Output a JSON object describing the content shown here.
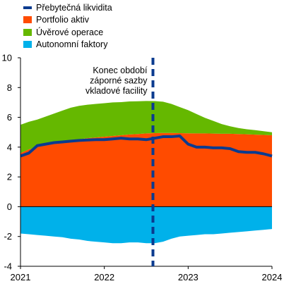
{
  "legend": {
    "items": [
      {
        "label": "Přebytečná likvidita",
        "color": "#0b3b8f",
        "kind": "line"
      },
      {
        "label": "Portfolio aktiv",
        "color": "#ff4b00",
        "kind": "box"
      },
      {
        "label": "Úvěrové  operace",
        "color": "#65b800",
        "kind": "box"
      },
      {
        "label": "Autonomní faktory",
        "color": "#00b1ea",
        "kind": "box"
      }
    ]
  },
  "annotation": {
    "lines": [
      "Konec období",
      "záporné sazby",
      "vkladové facility"
    ],
    "x": 2022.58
  },
  "chart_data": {
    "type": "area",
    "title": "",
    "xlabel": "",
    "ylabel": "",
    "xlim": [
      2021.0,
      2024.0
    ],
    "ylim": [
      -4,
      10
    ],
    "yticks": [
      -4,
      -2,
      0,
      2,
      4,
      6,
      8,
      10
    ],
    "xticks": [
      {
        "value": 2021,
        "label": "2021"
      },
      {
        "value": 2022,
        "label": "2022"
      },
      {
        "value": 2023,
        "label": "2023"
      },
      {
        "value": 2024,
        "label": "2024"
      }
    ],
    "x": [
      2021.0,
      2021.1,
      2021.2,
      2021.3,
      2021.4,
      2021.5,
      2021.6,
      2021.7,
      2021.8,
      2021.9,
      2022.0,
      2022.1,
      2022.2,
      2022.3,
      2022.4,
      2022.5,
      2022.6,
      2022.7,
      2022.8,
      2022.9,
      2023.0,
      2023.1,
      2023.2,
      2023.3,
      2023.4,
      2023.5,
      2023.6,
      2023.7,
      2023.8,
      2023.9,
      2024.0
    ],
    "series": [
      {
        "name": "Portfolio aktiv",
        "color": "#ff4b00",
        "kind": "area-positive",
        "values": [
          3.6,
          3.85,
          4.0,
          4.15,
          4.25,
          4.35,
          4.45,
          4.52,
          4.6,
          4.65,
          4.7,
          4.75,
          4.8,
          4.85,
          4.88,
          4.92,
          4.94,
          4.95,
          4.95,
          4.94,
          4.93,
          4.92,
          4.92,
          4.91,
          4.9,
          4.9,
          4.88,
          4.86,
          4.84,
          4.82,
          4.8
        ]
      },
      {
        "name": "Úvěrové  operace",
        "color": "#65b800",
        "kind": "area-positive",
        "values": [
          1.9,
          1.85,
          1.85,
          1.9,
          2.0,
          2.1,
          2.2,
          2.25,
          2.25,
          2.25,
          2.25,
          2.25,
          2.22,
          2.22,
          2.2,
          2.18,
          2.15,
          2.1,
          1.95,
          1.75,
          1.55,
          1.3,
          1.05,
          0.85,
          0.65,
          0.5,
          0.4,
          0.34,
          0.3,
          0.25,
          0.2
        ]
      },
      {
        "name": "Autonomní faktory",
        "color": "#00b1ea",
        "kind": "area-negative",
        "values": [
          -1.8,
          -1.85,
          -1.9,
          -1.95,
          -2.0,
          -2.05,
          -2.15,
          -2.2,
          -2.3,
          -2.35,
          -2.4,
          -2.45,
          -2.45,
          -2.4,
          -2.4,
          -2.45,
          -2.45,
          -2.35,
          -2.15,
          -2.0,
          -1.95,
          -1.9,
          -1.85,
          -1.85,
          -1.8,
          -1.75,
          -1.7,
          -1.65,
          -1.6,
          -1.55,
          -1.5
        ]
      },
      {
        "name": "Přebytečná likvidita",
        "color": "#0b3b8f",
        "kind": "line",
        "values": [
          3.4,
          3.6,
          4.1,
          4.2,
          4.3,
          4.35,
          4.4,
          4.45,
          4.48,
          4.5,
          4.5,
          4.55,
          4.6,
          4.55,
          4.55,
          4.5,
          4.6,
          4.7,
          4.7,
          4.75,
          4.2,
          4.0,
          4.0,
          3.95,
          3.95,
          3.9,
          3.7,
          3.65,
          3.65,
          3.55,
          3.4
        ]
      }
    ]
  }
}
